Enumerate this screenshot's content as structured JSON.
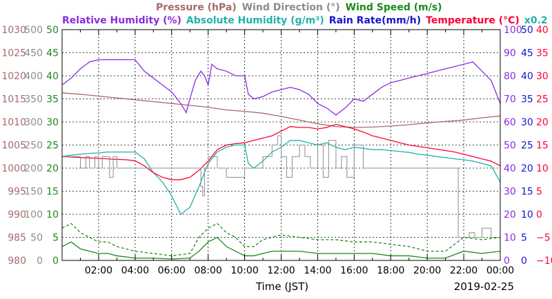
{
  "chart_data": {
    "type": "line",
    "date": "2019-02-25",
    "xlabel": "Time (JST)",
    "x_ticks": [
      "02:00",
      "04:00",
      "06:00",
      "08:00",
      "10:00",
      "12:00",
      "14:00",
      "16:00",
      "18:00",
      "20:00",
      "22:00",
      "00:00"
    ],
    "x_range_hours": [
      0,
      24
    ],
    "grid": true,
    "headers": {
      "line1": [
        {
          "text": "Pressure (hPa)",
          "color": "#a66a6a"
        },
        {
          "text": "Wind Direction (°)",
          "color": "#8c8c8c"
        },
        {
          "text": "Wind Speed (m/s)",
          "color": "#1a8a1a"
        }
      ],
      "line2": [
        {
          "text": "Relative Humidity (%)",
          "color": "#8a2be2"
        },
        {
          "text": "Absolute Humidity (g/m³)",
          "color": "#20b2aa"
        },
        {
          "text": "Rain Rate(mm/h)",
          "color": "#1515d0"
        },
        {
          "text": "Temperature (°C)",
          "color": "#ff0033"
        },
        {
          "text": "x0.2",
          "color": "#20b2aa"
        }
      ]
    },
    "axes": {
      "pressure": {
        "color": "#a66a6a",
        "labels": [
          "1030",
          "1025",
          "1020",
          "1015",
          "1010",
          "1005",
          "1000",
          "995",
          "990",
          "985",
          "980"
        ]
      },
      "wind_direction": {
        "color": "#8c8c8c",
        "labels": [
          "500",
          "450",
          "400",
          "350",
          "300",
          "250",
          "200",
          "150",
          "100",
          "50",
          "0"
        ]
      },
      "wind_speed": {
        "color": "#1a8a1a",
        "labels": [
          "50",
          "45",
          "40",
          "35",
          "30",
          "25",
          "20",
          "15",
          "10",
          "5",
          "0"
        ]
      },
      "relative_humidity": {
        "color": "#8a2be2",
        "labels": [
          "100",
          "90",
          "80",
          "70",
          "60",
          "50",
          "40",
          "30",
          "20",
          "10",
          "0"
        ]
      },
      "rain_rate": {
        "color": "#1515d0",
        "labels": [
          "50",
          "45",
          "40",
          "35",
          "30",
          "25",
          "20",
          "15",
          "10",
          "5",
          "0"
        ]
      },
      "temperature": {
        "color": "#ff0033",
        "labels": [
          "40",
          "35",
          "30",
          "25",
          "20",
          "15",
          "10",
          "5",
          "0",
          "−5",
          "−10"
        ]
      }
    },
    "series": [
      {
        "name": "Relative Humidity (%)",
        "color": "#8a2be2",
        "axis": [
          0,
          100
        ],
        "x": [
          0,
          0.5,
          1,
          1.5,
          2,
          2.5,
          3,
          3.5,
          4,
          4.5,
          5,
          5.5,
          6,
          6.5,
          6.8,
          7,
          7.3,
          7.6,
          7.8,
          8,
          8.2,
          8.5,
          9,
          9.5,
          10,
          10.2,
          10.5,
          11,
          11.5,
          12,
          12.5,
          13,
          13.5,
          14,
          14.5,
          15,
          15.5,
          16,
          16.5,
          17,
          17.5,
          18,
          18.5,
          19,
          19.5,
          20,
          20.5,
          21,
          21.5,
          22,
          22.5,
          23,
          23.5,
          24
        ],
        "values": [
          76,
          79,
          83,
          86,
          87,
          87,
          87,
          87,
          87,
          82,
          79,
          76,
          73,
          68,
          64,
          70,
          78,
          82,
          80,
          76,
          85,
          83,
          82,
          80,
          80,
          72,
          70,
          71,
          73,
          74,
          75,
          74,
          72,
          68,
          66,
          63,
          66,
          70,
          69,
          72,
          75,
          77,
          78,
          79,
          80,
          81,
          82,
          83,
          84,
          85,
          86,
          82,
          78,
          68
        ]
      },
      {
        "name": "Pressure (hPa)",
        "color": "#a66a6a",
        "axis": [
          980,
          1030
        ],
        "x": [
          0,
          1,
          2,
          3,
          4,
          5,
          6,
          7,
          8,
          9,
          10,
          11,
          12,
          13,
          14,
          15,
          16,
          17,
          18,
          19,
          20,
          21,
          22,
          23,
          24
        ],
        "values": [
          1016.3,
          1016.0,
          1015.6,
          1015.2,
          1014.8,
          1014.4,
          1014.0,
          1013.6,
          1013.2,
          1012.6,
          1012.3,
          1011.9,
          1011.2,
          1010.4,
          1009.6,
          1009.0,
          1008.8,
          1008.9,
          1009.1,
          1009.4,
          1009.8,
          1010.1,
          1010.4,
          1010.9,
          1011.3
        ]
      },
      {
        "name": "Absolute Humidity (g/m³)",
        "color": "#20b2aa",
        "axis": [
          0,
          50
        ],
        "scale": 0.2,
        "x": [
          0,
          0.5,
          1,
          1.5,
          2,
          2.5,
          3,
          3.5,
          4,
          4.5,
          5,
          5.5,
          6,
          6.5,
          7,
          7.5,
          8,
          8.5,
          9,
          9.5,
          10,
          10.2,
          10.5,
          11,
          11.5,
          12,
          12.5,
          13,
          13.5,
          14,
          14.5,
          15,
          15.5,
          16,
          16.5,
          17,
          17.5,
          18,
          18.5,
          19,
          19.5,
          20,
          20.5,
          21,
          21.5,
          22,
          22.5,
          23,
          23.5,
          24
        ],
        "values": [
          22.5,
          22.8,
          23.0,
          23.2,
          23.3,
          23.5,
          23.5,
          23.5,
          23.5,
          22.0,
          19.0,
          17.0,
          14.0,
          10.0,
          11.5,
          16.0,
          21.0,
          23.5,
          24.5,
          25.0,
          25.0,
          21.0,
          20.0,
          21.5,
          23.5,
          24.5,
          26.0,
          26.0,
          25.5,
          25.0,
          25.5,
          24.5,
          24.0,
          24.5,
          24.3,
          24.0,
          24.0,
          23.8,
          23.6,
          23.4,
          23.0,
          22.8,
          22.5,
          22.3,
          22.0,
          21.8,
          21.5,
          21.0,
          20.5,
          17.0
        ]
      },
      {
        "name": "Temperature (°C)",
        "color": "#ff0033",
        "axis": [
          -10,
          40
        ],
        "x": [
          0,
          0.5,
          1,
          1.5,
          2,
          2.5,
          3,
          3.5,
          4,
          4.5,
          5,
          5.5,
          6,
          6.5,
          7,
          7.5,
          8,
          8.5,
          9,
          9.5,
          10,
          10.5,
          11,
          11.5,
          12,
          12.5,
          13,
          13.5,
          14,
          14.5,
          15,
          15.5,
          16,
          16.5,
          17,
          17.5,
          18,
          18.5,
          19,
          19.5,
          20,
          20.5,
          21,
          21.5,
          22,
          22.5,
          23,
          23.5,
          24
        ],
        "values": [
          12.5,
          12.4,
          12.3,
          12.2,
          12.1,
          12.0,
          11.9,
          11.8,
          11.6,
          10.5,
          9.0,
          8.0,
          7.5,
          7.5,
          8.0,
          9.5,
          11.5,
          14.0,
          15.0,
          15.3,
          15.5,
          16.0,
          16.5,
          17.0,
          18.0,
          19.0,
          18.8,
          18.8,
          18.5,
          18.8,
          19.5,
          19.0,
          18.5,
          17.8,
          17.0,
          16.5,
          16.0,
          15.5,
          15.0,
          14.7,
          14.4,
          14.1,
          13.8,
          13.5,
          13.0,
          12.5,
          12.0,
          11.5,
          10.5
        ]
      },
      {
        "name": "Wind Direction (°)",
        "color": "#8c8c8c",
        "axis": [
          0,
          500
        ],
        "step": true,
        "x": [
          0,
          1,
          1.3,
          1.5,
          1.8,
          2.0,
          2.2,
          2.6,
          2.8,
          3.0,
          4.0,
          7.6,
          7.7,
          7.8,
          8.0,
          8.5,
          9.0,
          10.0,
          11.0,
          11.5,
          11.8,
          12.0,
          12.3,
          12.6,
          13.0,
          13.3,
          13.6,
          14.0,
          14.3,
          14.6,
          15.0,
          15.3,
          15.6,
          16.0,
          16.5,
          17.0,
          18.0,
          20.0,
          21.0,
          21.6,
          21.7,
          22.0,
          22.3,
          22.6,
          23.0,
          23.5,
          24.0
        ],
        "values": [
          225,
          200,
          225,
          200,
          225,
          200,
          225,
          180,
          225,
          200,
          200,
          160,
          140,
          200,
          225,
          200,
          180,
          200,
          225,
          250,
          270,
          225,
          180,
          225,
          250,
          225,
          200,
          250,
          180,
          260,
          200,
          225,
          180,
          250,
          200,
          200,
          200,
          200,
          200,
          200,
          50,
          50,
          60,
          50,
          70,
          50,
          70
        ]
      },
      {
        "name": "Wind Speed (m/s)",
        "color": "#1a8a1a",
        "axis": [
          0,
          50
        ],
        "x": [
          0,
          0.5,
          1,
          1.5,
          2,
          2.5,
          3,
          4,
          5,
          6,
          7,
          7.5,
          8,
          8.5,
          9,
          9.5,
          10,
          10.5,
          11,
          11.5,
          12,
          13,
          14,
          15,
          16,
          17,
          18,
          19,
          20,
          21,
          22,
          23,
          24
        ],
        "values": [
          3,
          4,
          2.5,
          2,
          1.5,
          1.5,
          1,
          0.5,
          0.5,
          0.3,
          0.5,
          2,
          4,
          5,
          3,
          2,
          1,
          1,
          1.5,
          2,
          2,
          2,
          1.5,
          1.5,
          1.5,
          1.5,
          1,
          1,
          0.5,
          0.5,
          2,
          1.5,
          2
        ]
      },
      {
        "name": "Wind Gust (m/s)",
        "color": "#1a8a1a",
        "axis": [
          0,
          50
        ],
        "dashed": true,
        "x": [
          0,
          0.5,
          1,
          1.5,
          2,
          2.5,
          3,
          4,
          5,
          6,
          7,
          7.5,
          8,
          8.5,
          9,
          9.5,
          10,
          10.5,
          11,
          11.5,
          12,
          13,
          14,
          15,
          16,
          17,
          18,
          19,
          20,
          21,
          22,
          23,
          24
        ],
        "values": [
          7,
          8,
          6,
          5,
          4,
          4,
          3,
          2,
          1.5,
          1,
          1.5,
          5,
          7,
          8,
          6,
          5,
          3,
          3,
          4.5,
          5,
          5.5,
          5,
          4.5,
          4.5,
          4,
          4,
          3.5,
          3,
          2,
          2,
          5,
          4.5,
          5
        ]
      }
    ]
  }
}
